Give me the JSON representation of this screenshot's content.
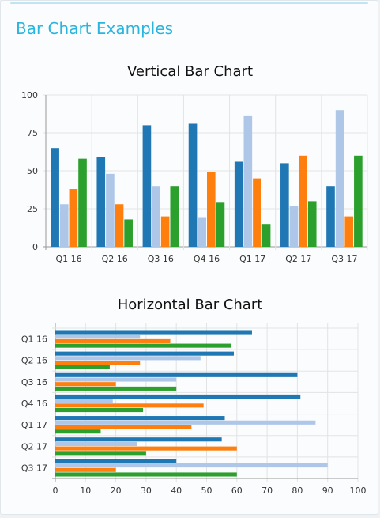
{
  "page": {
    "title": "Bar Chart Examples"
  },
  "chart_data": [
    {
      "type": "bar",
      "orientation": "vertical",
      "title": "Vertical Bar Chart",
      "xlabel": "",
      "ylabel": "",
      "categories": [
        "Q1 16",
        "Q2 16",
        "Q3 16",
        "Q4 16",
        "Q1 17",
        "Q2 17",
        "Q3 17"
      ],
      "ylim": [
        0,
        100
      ],
      "yticks": [
        0,
        25,
        50,
        75,
        100
      ],
      "grid": true,
      "legend": "none",
      "series": [
        {
          "color": "#1f77b4",
          "values": [
            65,
            59,
            80,
            81,
            56,
            55,
            40
          ]
        },
        {
          "color": "#aec7e8",
          "values": [
            28,
            48,
            40,
            19,
            86,
            27,
            90
          ]
        },
        {
          "color": "#ff7f0e",
          "values": [
            38,
            28,
            20,
            49,
            45,
            60,
            20
          ]
        },
        {
          "color": "#2ca02c",
          "values": [
            58,
            18,
            40,
            29,
            15,
            30,
            60
          ]
        }
      ]
    },
    {
      "type": "bar",
      "orientation": "horizontal",
      "title": "Horizontal Bar Chart",
      "xlabel": "",
      "ylabel": "",
      "categories": [
        "Q1 16",
        "Q2 16",
        "Q3 16",
        "Q4 16",
        "Q1 17",
        "Q2 17",
        "Q3 17"
      ],
      "xlim": [
        0,
        100
      ],
      "xticks": [
        0,
        10,
        20,
        30,
        40,
        50,
        60,
        70,
        80,
        90,
        100
      ],
      "grid": true,
      "legend": "none",
      "series": [
        {
          "color": "#1f77b4",
          "values": [
            65,
            59,
            80,
            81,
            56,
            55,
            40
          ]
        },
        {
          "color": "#aec7e8",
          "values": [
            28,
            48,
            40,
            19,
            86,
            27,
            90
          ]
        },
        {
          "color": "#ff7f0e",
          "values": [
            38,
            28,
            20,
            49,
            45,
            60,
            20
          ]
        },
        {
          "color": "#2ca02c",
          "values": [
            58,
            18,
            40,
            29,
            15,
            30,
            60
          ]
        }
      ]
    }
  ]
}
